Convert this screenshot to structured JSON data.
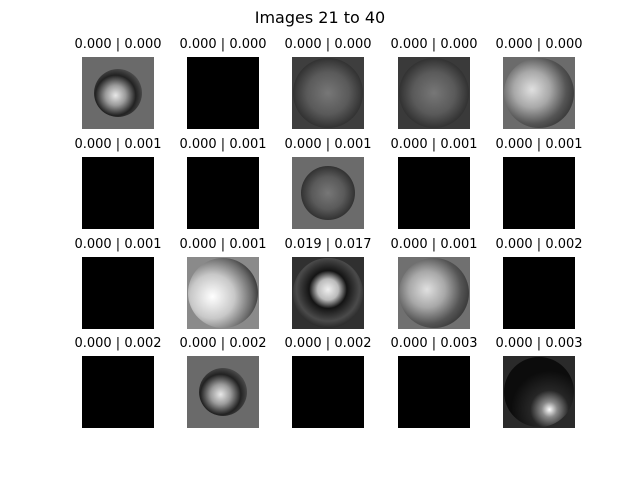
{
  "figure": {
    "title": "Images 21 to 40"
  },
  "grid": {
    "columns": 5,
    "rows": 4
  },
  "tiles": [
    {
      "label": "0.000 | 0.000",
      "bg": "#6a6a6a",
      "disc": "circle-mixed"
    },
    {
      "label": "0.000 | 0.000",
      "bg": "#000000",
      "disc": "none"
    },
    {
      "label": "0.000 | 0.000",
      "bg": "#3e3e3e",
      "disc": "circle-mottled"
    },
    {
      "label": "0.000 | 0.000",
      "bg": "#3a3a3a",
      "disc": "circle-mottled"
    },
    {
      "label": "0.000 | 0.000",
      "bg": "#6b6b6b",
      "disc": "circle-soft"
    },
    {
      "label": "0.000 | 0.001",
      "bg": "#000000",
      "disc": "none"
    },
    {
      "label": "0.000 | 0.001",
      "bg": "#000000",
      "disc": "none"
    },
    {
      "label": "0.000 | 0.001",
      "bg": "#6b6b6b",
      "disc": "circle-mottled"
    },
    {
      "label": "0.000 | 0.001",
      "bg": "#000000",
      "disc": "none"
    },
    {
      "label": "0.000 | 0.001",
      "bg": "#000000",
      "disc": "none"
    },
    {
      "label": "0.000 | 0.001",
      "bg": "#000000",
      "disc": "none"
    },
    {
      "label": "0.000 | 0.001",
      "bg": "#8a8a8a",
      "disc": "circle-bright"
    },
    {
      "label": "0.019 | 0.017",
      "bg": "#303030",
      "disc": "circle-ring"
    },
    {
      "label": "0.000 | 0.001",
      "bg": "#707070",
      "disc": "circle-soft"
    },
    {
      "label": "0.000 | 0.002",
      "bg": "#000000",
      "disc": "none"
    },
    {
      "label": "0.000 | 0.002",
      "bg": "#000000",
      "disc": "none"
    },
    {
      "label": "0.000 | 0.002",
      "bg": "#6a6a6a",
      "disc": "circle-mixed"
    },
    {
      "label": "0.000 | 0.002",
      "bg": "#000000",
      "disc": "none"
    },
    {
      "label": "0.000 | 0.003",
      "bg": "#000000",
      "disc": "none"
    },
    {
      "label": "0.000 | 0.003",
      "bg": "#2a2a2a",
      "disc": "circle-dark"
    }
  ]
}
